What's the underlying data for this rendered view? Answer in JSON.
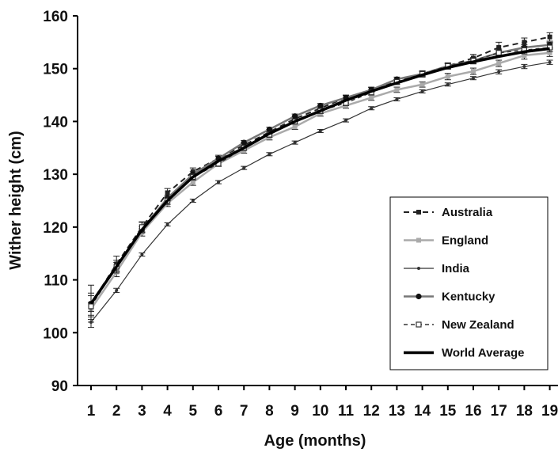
{
  "chart_data": {
    "type": "line",
    "title": "",
    "xlabel": "Age (months)",
    "ylabel": "Wither height (cm)",
    "x": [
      1,
      2,
      3,
      4,
      5,
      6,
      7,
      8,
      9,
      10,
      11,
      12,
      13,
      14,
      15,
      16,
      17,
      18,
      19
    ],
    "xlim": [
      0.5,
      19.5
    ],
    "ylim": [
      90,
      160
    ],
    "yticks": [
      90,
      100,
      110,
      120,
      130,
      140,
      150,
      160
    ],
    "grid": false,
    "legend_position": "right",
    "series": [
      {
        "name": "Australia",
        "color": "#222222",
        "dash": "7,5",
        "width": 2,
        "marker": "filled-square",
        "values": [
          105.5,
          113.0,
          120.0,
          126.5,
          130.5,
          133.0,
          135.5,
          138.0,
          140.5,
          142.5,
          144.5,
          146.0,
          147.5,
          149.0,
          150.5,
          152.0,
          154.0,
          155.0,
          156.0
        ],
        "errors": [
          3.5,
          1.5,
          1.0,
          0.8,
          0.7,
          0.6,
          0.5,
          0.5,
          0.5,
          0.5,
          0.5,
          0.5,
          0.5,
          0.6,
          0.6,
          0.7,
          1.0,
          0.8,
          0.8
        ]
      },
      {
        "name": "England",
        "color": "#aaaaaa",
        "dash": "",
        "width": 2.5,
        "marker": "gray-square",
        "values": [
          104.5,
          111.5,
          119.0,
          124.5,
          128.5,
          132.0,
          134.5,
          137.0,
          139.0,
          141.5,
          143.0,
          144.5,
          146.0,
          147.0,
          148.5,
          149.5,
          151.0,
          152.5,
          153.0
        ],
        "errors": [
          1.2,
          0.9,
          0.7,
          0.6,
          0.6,
          0.5,
          0.5,
          0.5,
          0.5,
          0.5,
          0.5,
          0.5,
          0.5,
          0.5,
          0.6,
          0.6,
          0.6,
          0.7,
          0.7
        ]
      },
      {
        "name": "India",
        "color": "#333333",
        "dash": "",
        "width": 1.2,
        "marker": "small-dot",
        "values": [
          102.0,
          108.0,
          114.8,
          120.5,
          125.0,
          128.5,
          131.2,
          133.8,
          136.0,
          138.2,
          140.2,
          142.5,
          144.2,
          145.7,
          147.0,
          148.2,
          149.4,
          150.4,
          151.2
        ],
        "errors": [
          1.0,
          0.4,
          0.3,
          0.3,
          0.3,
          0.3,
          0.3,
          0.3,
          0.3,
          0.3,
          0.3,
          0.3,
          0.3,
          0.3,
          0.3,
          0.3,
          0.4,
          0.4,
          0.4
        ]
      },
      {
        "name": "Kentucky",
        "color": "#777777",
        "dash": "",
        "width": 2.5,
        "marker": "filled-circle",
        "values": [
          105.5,
          112.5,
          119.5,
          125.5,
          130.0,
          133.0,
          136.0,
          138.5,
          141.0,
          143.0,
          144.5,
          146.0,
          148.0,
          149.0,
          150.5,
          151.5,
          153.0,
          154.0,
          154.5
        ],
        "errors": [
          1.5,
          0.8,
          0.6,
          0.5,
          0.5,
          0.4,
          0.4,
          0.4,
          0.4,
          0.4,
          0.4,
          0.4,
          0.4,
          0.4,
          0.4,
          0.5,
          0.5,
          0.5,
          0.5
        ]
      },
      {
        "name": "New Zealand",
        "color": "#333333",
        "dash": "5,4",
        "width": 1.5,
        "marker": "open-square",
        "values": [
          105.0,
          112.5,
          120.0,
          125.0,
          129.5,
          132.0,
          135.0,
          137.5,
          140.0,
          142.0,
          143.5,
          145.5,
          147.5,
          149.0,
          150.5,
          151.5,
          153.0,
          153.5,
          154.0
        ],
        "errors": [
          2.5,
          1.2,
          0.9,
          0.7,
          0.6,
          0.5,
          0.5,
          0.5,
          0.5,
          0.5,
          0.5,
          0.5,
          0.5,
          0.5,
          0.5,
          0.6,
          0.7,
          0.7,
          0.8
        ]
      },
      {
        "name": "World Average",
        "color": "#000000",
        "dash": "",
        "width": 3.5,
        "marker": "none",
        "values": [
          105.5,
          112.5,
          119.5,
          125.0,
          129.5,
          132.5,
          135.0,
          137.7,
          140.0,
          142.0,
          144.0,
          145.7,
          147.3,
          148.8,
          150.2,
          151.3,
          152.3,
          153.2,
          153.8
        ],
        "errors": []
      }
    ]
  }
}
